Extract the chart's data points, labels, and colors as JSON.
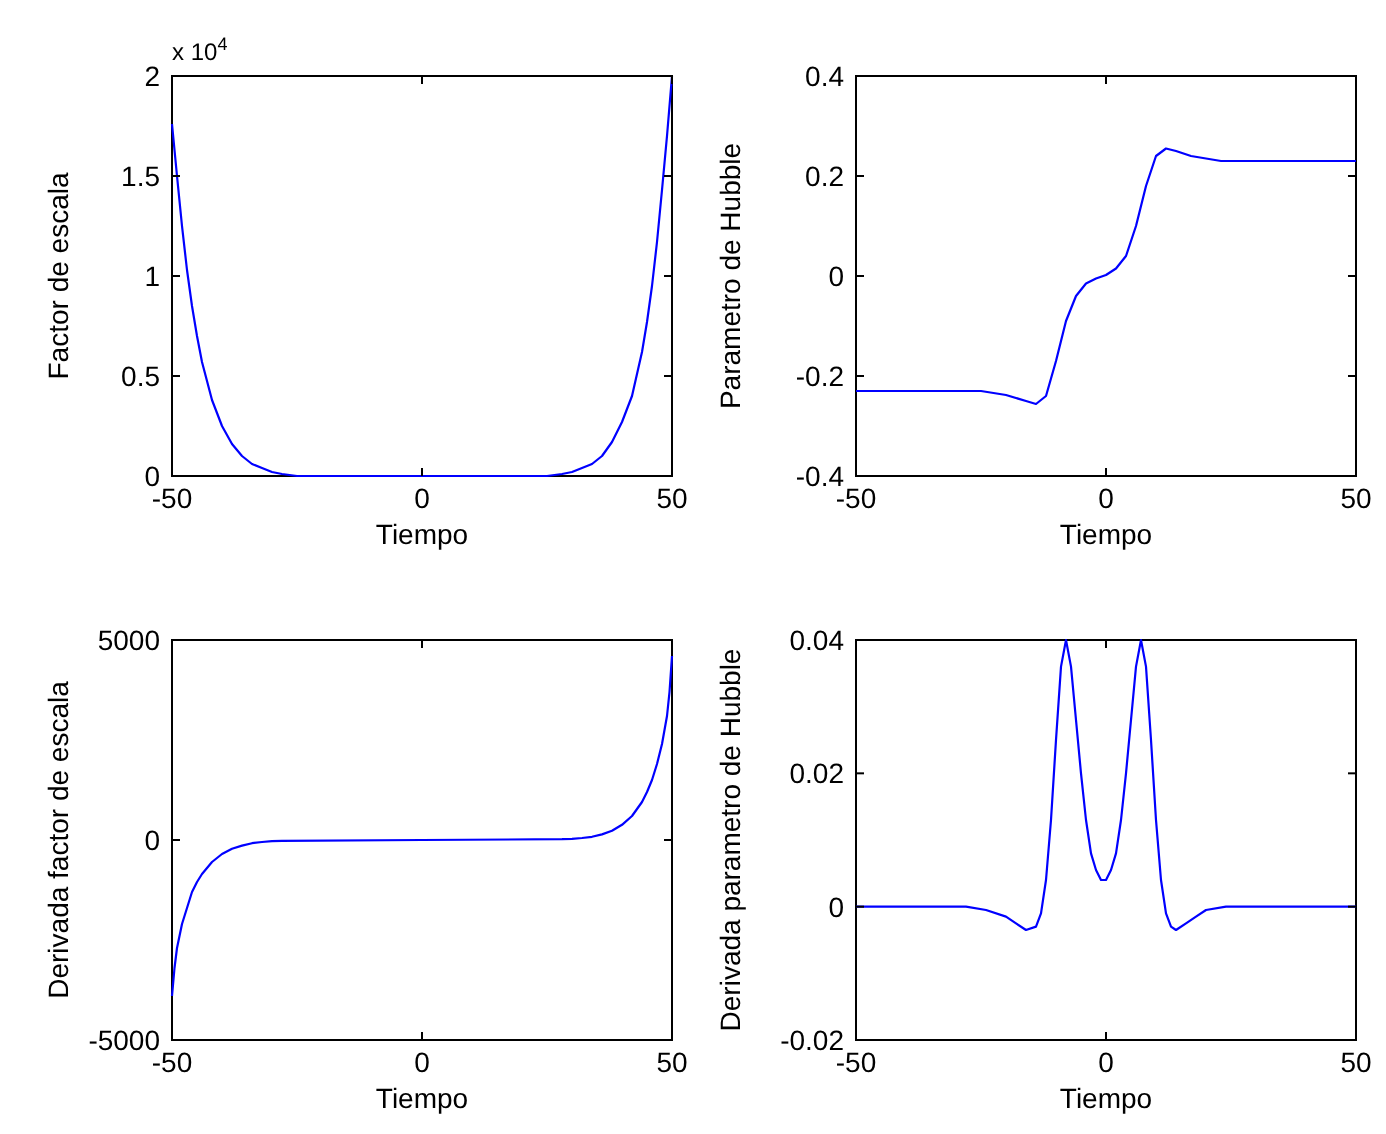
{
  "chart_data": [
    {
      "type": "line",
      "xlabel": "Tiempo",
      "ylabel": "Factor de escala",
      "annotations": [
        "x 10$^{4}$"
      ],
      "xlim": [
        -50,
        50
      ],
      "xticks": [
        -50,
        0,
        50
      ],
      "ylim": [
        0,
        2
      ],
      "yticks": [
        0,
        0.5,
        1,
        1.5,
        2
      ],
      "series": [
        {
          "color": "#0000ff",
          "x": [
            -50,
            -49,
            -48,
            -47,
            -46,
            -45,
            -44,
            -42,
            -40,
            -38,
            -36,
            -34,
            -32,
            -30,
            -28,
            -25,
            0,
            25,
            28,
            30,
            32,
            34,
            36,
            38,
            40,
            42,
            44,
            45,
            46,
            47,
            48,
            49,
            50
          ],
          "values": [
            1.76,
            1.5,
            1.25,
            1.03,
            0.85,
            0.7,
            0.57,
            0.38,
            0.25,
            0.16,
            0.1,
            0.06,
            0.04,
            0.02,
            0.01,
            0,
            0,
            0,
            0.01,
            0.02,
            0.04,
            0.06,
            0.1,
            0.17,
            0.27,
            0.4,
            0.62,
            0.77,
            0.95,
            1.17,
            1.43,
            1.7,
            2.0
          ]
        }
      ]
    },
    {
      "type": "line",
      "xlabel": "Tiempo",
      "ylabel": "Parametro de Hubble",
      "xlim": [
        -50,
        50
      ],
      "xticks": [
        -50,
        0,
        50
      ],
      "ylim": [
        -0.4,
        0.4
      ],
      "yticks": [
        -0.4,
        -0.2,
        0,
        0.2,
        0.4
      ],
      "series": [
        {
          "color": "#0000ff",
          "x": [
            -50,
            -25,
            -20,
            -16,
            -14,
            -12,
            -10,
            -8,
            -6,
            -4,
            -2,
            0,
            2,
            4,
            6,
            8,
            10,
            12,
            14,
            17,
            20,
            23,
            50
          ],
          "values": [
            -0.23,
            -0.23,
            -0.238,
            -0.25,
            -0.256,
            -0.24,
            -0.17,
            -0.09,
            -0.04,
            -0.015,
            -0.005,
            0.002,
            0.015,
            0.04,
            0.1,
            0.18,
            0.24,
            0.255,
            0.25,
            0.24,
            0.235,
            0.23,
            0.23
          ]
        }
      ]
    },
    {
      "type": "line",
      "xlabel": "Tiempo",
      "ylabel": "Derivada factor de escala",
      "xlim": [
        -50,
        50
      ],
      "xticks": [
        -50,
        0,
        50
      ],
      "ylim": [
        -5000,
        5000
      ],
      "yticks": [
        -5000,
        0,
        5000
      ],
      "series": [
        {
          "color": "#0000ff",
          "x": [
            -50,
            -49.5,
            -49,
            -48,
            -47,
            -46,
            -45,
            -44,
            -42,
            -40,
            -38,
            -36,
            -34,
            -32,
            -30,
            -28,
            0,
            28,
            30,
            32,
            34,
            36,
            38,
            40,
            42,
            44,
            45,
            46,
            47,
            48,
            49,
            49.5,
            50
          ],
          "values": [
            -3900,
            -3200,
            -2700,
            -2100,
            -1700,
            -1300,
            -1050,
            -850,
            -550,
            -350,
            -220,
            -140,
            -80,
            -50,
            -30,
            -20,
            0,
            20,
            30,
            50,
            80,
            140,
            230,
            380,
            600,
            950,
            1200,
            1500,
            1900,
            2400,
            3100,
            3700,
            4600
          ]
        }
      ]
    },
    {
      "type": "line",
      "xlabel": "Tiempo",
      "ylabel": "Derivada parametro de Hubble",
      "xlim": [
        -50,
        50
      ],
      "xticks": [
        -50,
        0,
        50
      ],
      "ylim": [
        -0.02,
        0.04
      ],
      "yticks": [
        -0.02,
        0,
        0.02,
        0.04
      ],
      "series": [
        {
          "color": "#0000ff",
          "x": [
            -50,
            -28,
            -24,
            -20,
            -18,
            -16,
            -14,
            -13,
            -12,
            -11,
            -10,
            -9,
            -8,
            -7,
            -6,
            -5,
            -4,
            -3,
            -2,
            -1,
            0,
            1,
            2,
            3,
            4,
            5,
            6,
            7,
            8,
            9,
            10,
            11,
            12,
            13,
            14,
            16,
            18,
            20,
            24,
            28,
            50
          ],
          "values": [
            0,
            0,
            -0.0005,
            -0.0015,
            -0.0025,
            -0.0035,
            -0.003,
            -0.001,
            0.004,
            0.013,
            0.025,
            0.036,
            0.04,
            0.036,
            0.028,
            0.02,
            0.013,
            0.008,
            0.0055,
            0.004,
            0.004,
            0.0055,
            0.008,
            0.013,
            0.02,
            0.028,
            0.036,
            0.04,
            0.036,
            0.025,
            0.013,
            0.004,
            -0.001,
            -0.003,
            -0.0035,
            -0.0025,
            -0.0015,
            -0.0005,
            0,
            0,
            0
          ]
        }
      ]
    }
  ]
}
